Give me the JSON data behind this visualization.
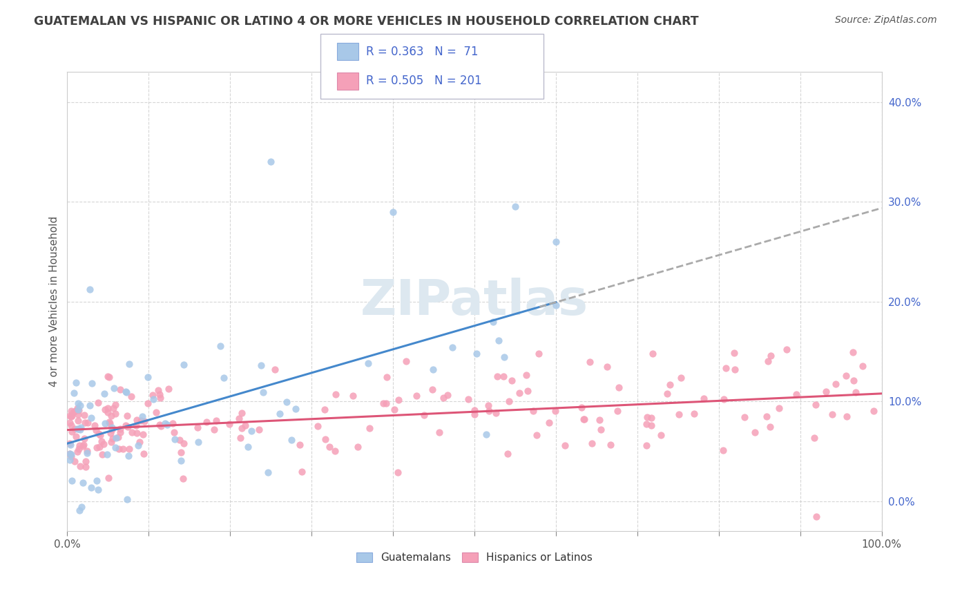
{
  "title": "GUATEMALAN VS HISPANIC OR LATINO 4 OR MORE VEHICLES IN HOUSEHOLD CORRELATION CHART",
  "source": "Source: ZipAtlas.com",
  "ylabel": "4 or more Vehicles in Household",
  "xlim": [
    0,
    100
  ],
  "ylim": [
    -3,
    43
  ],
  "blue_R": 0.363,
  "blue_N": 71,
  "pink_R": 0.505,
  "pink_N": 201,
  "blue_color": "#a8c8e8",
  "pink_color": "#f5a0b8",
  "blue_line_color": "#4488cc",
  "pink_line_color": "#dd5577",
  "gray_dash_color": "#aaaaaa",
  "legend_text_color": "#4466cc",
  "background_color": "#ffffff",
  "grid_color": "#cccccc",
  "title_color": "#404040",
  "watermark_color": "#dde8f0"
}
